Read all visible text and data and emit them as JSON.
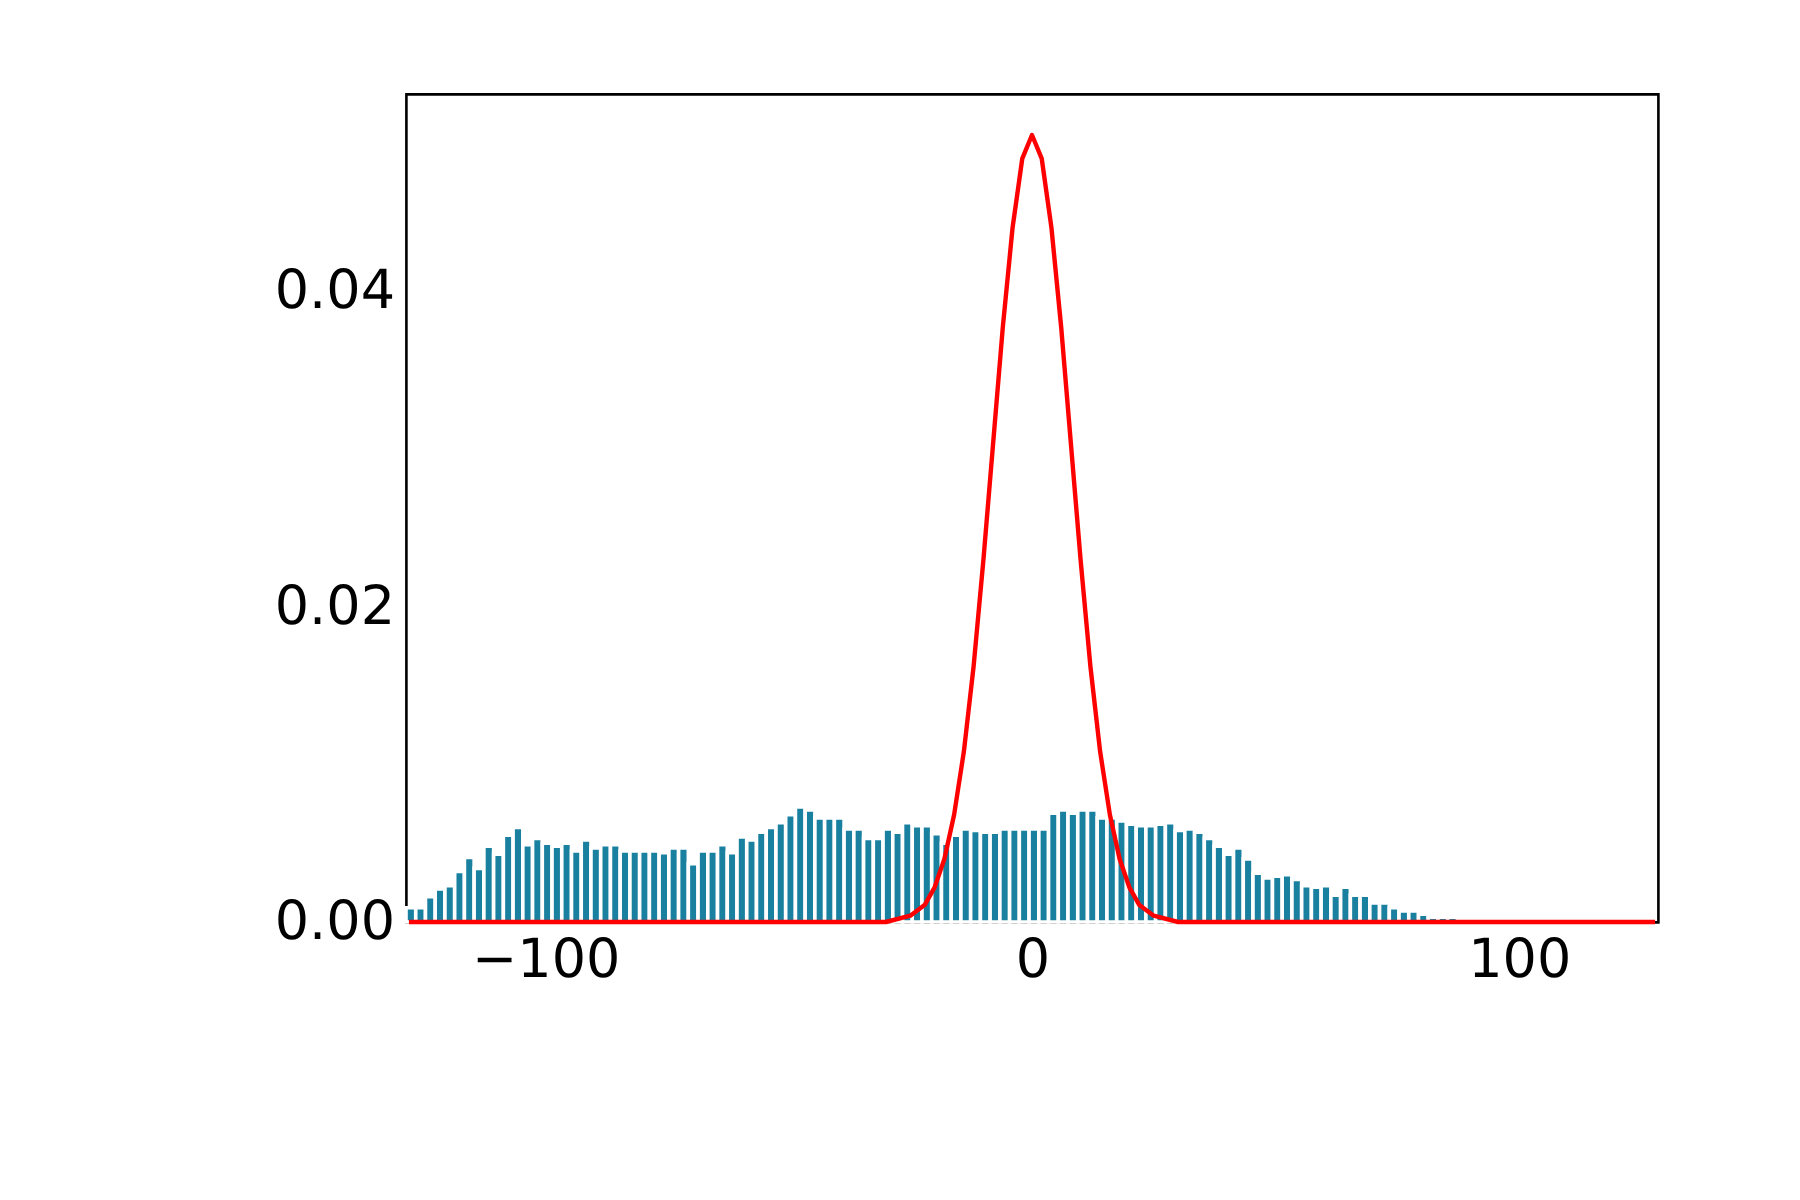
{
  "chart_data": {
    "type": "histogram",
    "xlim": [
      -128.6,
      128.6
    ],
    "ylim": [
      0,
      0.0525
    ],
    "xticks": [
      {
        "value": -100,
        "label": "−100"
      },
      0,
      100
    ],
    "yticks": [
      {
        "value": 0,
        "label": "0.00"
      },
      {
        "value": 0.02,
        "label": "0.02"
      },
      {
        "value": 0.04,
        "label": "0.04"
      }
    ],
    "grid": false,
    "series": [
      {
        "color": "#1a80a0",
        "bins": [
          -128.6,
          -126.6,
          -124.6,
          -122.6,
          -120.6,
          -118.6,
          -116.6,
          -114.6,
          -112.6,
          -110.6,
          -108.6,
          -106.6,
          -104.6,
          -102.6,
          -100.6,
          -98.6,
          -96.6,
          -94.6,
          -92.6,
          -90.6,
          -88.6,
          -86.6,
          -84.6,
          -82.6,
          -80.6,
          -78.6,
          -76.6,
          -74.6,
          -72.6,
          -70.6,
          -68.6,
          -66.6,
          -64.6,
          -62.6,
          -60.6,
          -58.6,
          -56.6,
          -54.6,
          -52.6,
          -50.6,
          -48.6,
          -46.6,
          -44.6,
          -42.6,
          -40.6,
          -38.6,
          -36.6,
          -34.6,
          -32.6,
          -30.6,
          -28.6,
          -26.6,
          -24.6,
          -22.6,
          -20.6,
          -18.6,
          -16.6,
          -14.6,
          -12.6,
          -10.6,
          -8.6,
          -6.6,
          -4.6,
          -2.6,
          -0.6,
          1.4,
          3.4,
          5.4,
          7.4,
          9.4,
          11.4,
          13.4,
          15.4,
          17.4,
          19.4,
          21.4,
          23.4,
          25.4,
          27.4,
          29.4,
          31.4,
          33.4,
          35.4,
          37.4,
          39.4,
          41.4,
          43.4,
          45.4,
          47.4,
          49.4,
          51.4,
          53.4,
          55.4,
          57.4,
          59.4,
          61.4,
          63.4,
          65.4,
          67.4,
          69.4,
          71.4,
          73.4,
          75.4,
          77.4,
          79.4,
          81.4,
          83.4,
          85.4,
          87.4
        ],
        "values": [
          0.0009,
          0.0009,
          0.0016,
          0.0021,
          0.0023,
          0.0032,
          0.0041,
          0.0034,
          0.0048,
          0.0043,
          0.0055,
          0.006,
          0.0049,
          0.0053,
          0.005,
          0.0048,
          0.005,
          0.0045,
          0.0052,
          0.0047,
          0.0049,
          0.0049,
          0.0045,
          0.0045,
          0.0045,
          0.0045,
          0.0044,
          0.0047,
          0.0047,
          0.0037,
          0.0045,
          0.0045,
          0.0049,
          0.0044,
          0.0054,
          0.0052,
          0.0057,
          0.006,
          0.0063,
          0.0068,
          0.0073,
          0.0071,
          0.0066,
          0.0066,
          0.0066,
          0.0059,
          0.0059,
          0.0053,
          0.0053,
          0.0059,
          0.0057,
          0.0063,
          0.0061,
          0.0061,
          0.0056,
          0.005,
          0.0055,
          0.0059,
          0.0058,
          0.0057,
          0.0057,
          0.0059,
          0.0059,
          0.0059,
          0.0059,
          0.0059,
          0.0069,
          0.0071,
          0.0069,
          0.0071,
          0.0071,
          0.0066,
          0.0066,
          0.0064,
          0.0062,
          0.0061,
          0.0061,
          0.0062,
          0.0063,
          0.0058,
          0.0059,
          0.0057,
          0.0053,
          0.0048,
          0.0043,
          0.0047,
          0.004,
          0.0031,
          0.0028,
          0.0029,
          0.003,
          0.0027,
          0.0023,
          0.0022,
          0.0023,
          0.0017,
          0.0022,
          0.0017,
          0.0017,
          0.0012,
          0.0012,
          0.0009,
          0.0007,
          0.0007,
          0.0005,
          0.0003,
          0.0003,
          0.0003
        ]
      },
      {
        "type": "line",
        "color": "#ff0000",
        "line_style": "solid",
        "marker": "none",
        "x": [
          -128,
          -40,
          -30,
          -25,
          -22,
          -20,
          -18,
          -16,
          -14,
          -12,
          -10,
          -8,
          -6,
          -4,
          -2,
          0,
          2,
          4,
          6,
          8,
          10,
          12,
          14,
          16,
          18,
          20,
          22,
          25,
          30,
          40,
          128
        ],
        "values": [
          0,
          0,
          0,
          0.0004,
          0.0011,
          0.0022,
          0.004,
          0.0068,
          0.0108,
          0.0162,
          0.0229,
          0.0303,
          0.0377,
          0.044,
          0.0484,
          0.0499,
          0.0484,
          0.044,
          0.0377,
          0.0303,
          0.0229,
          0.0162,
          0.0108,
          0.0068,
          0.004,
          0.0022,
          0.0011,
          0.0004,
          0,
          0,
          0
        ]
      }
    ]
  }
}
